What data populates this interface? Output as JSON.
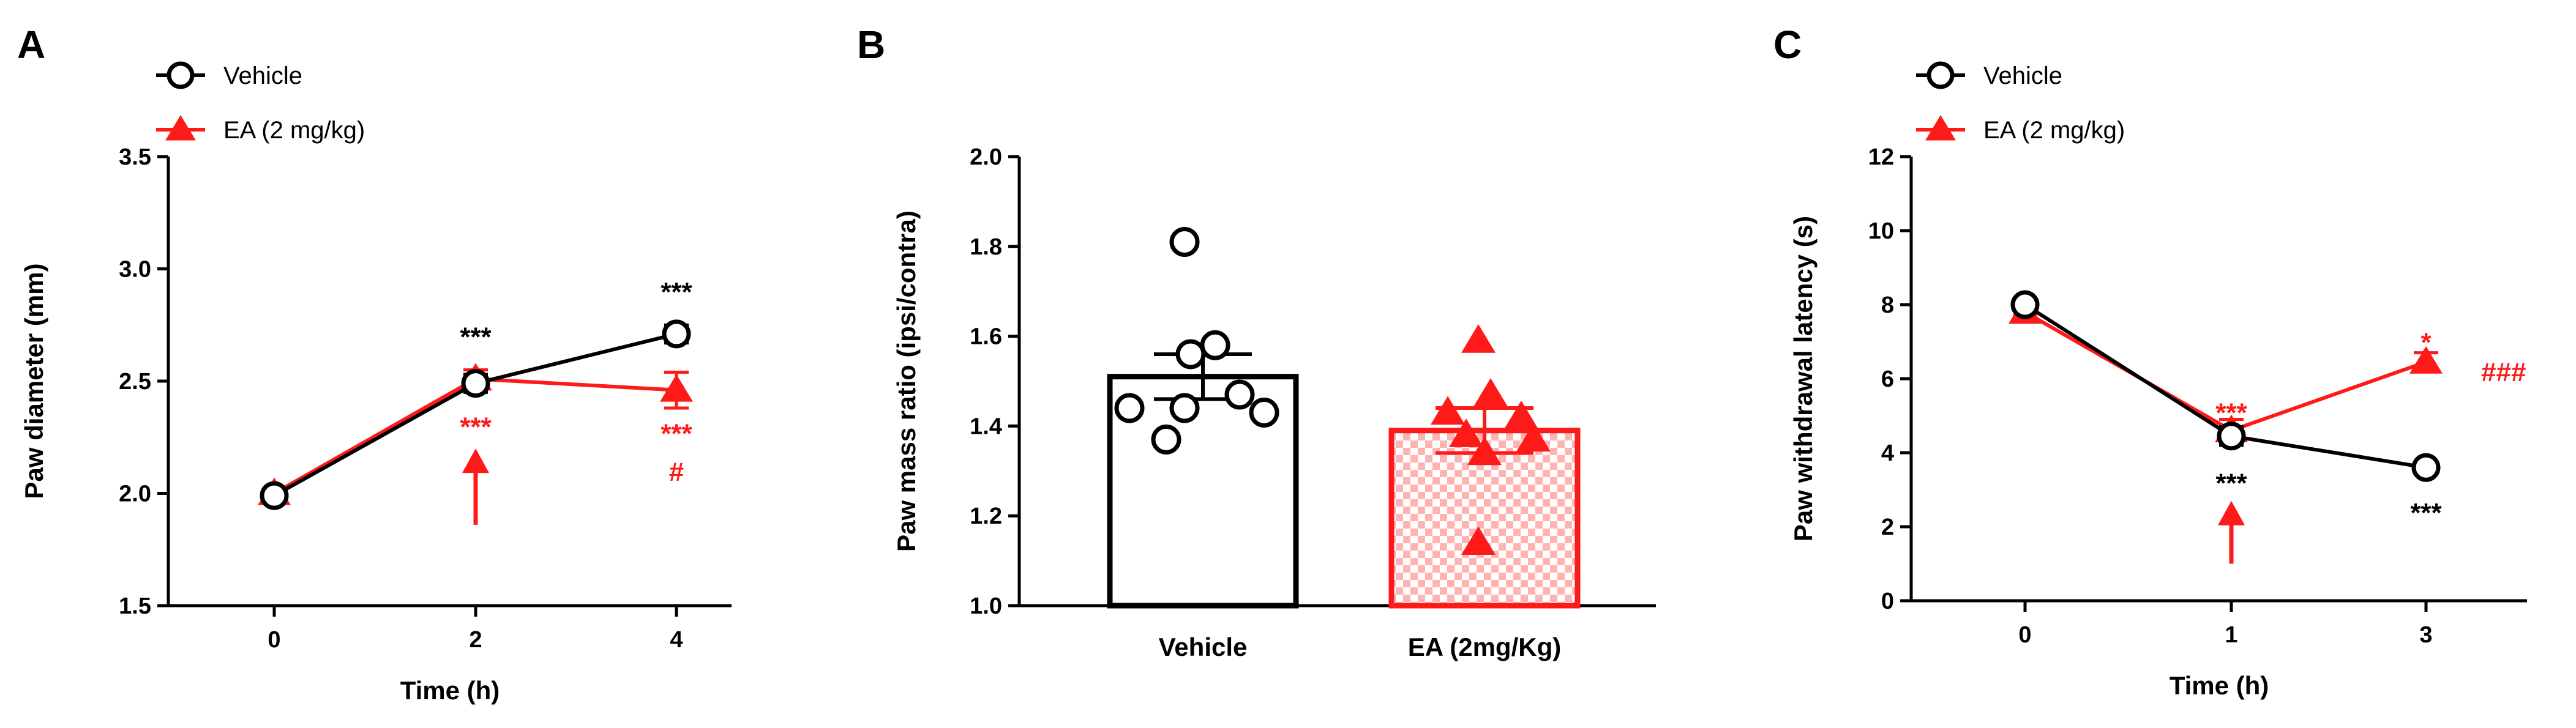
{
  "colors": {
    "vehicle": "#000000",
    "ea": "#ff1a1a"
  },
  "chart_data": [
    {
      "panel": "A",
      "type": "line",
      "xlabel": "Time (h)",
      "ylabel": "Paw diameter (mm)",
      "ylim": [
        1.5,
        3.5
      ],
      "yticks": [
        "1.5",
        "2.0",
        "2.5",
        "3.0",
        "3.5"
      ],
      "categories": [
        "0",
        "2",
        "4"
      ],
      "legend_position": "top-left",
      "series": [
        {
          "name": "Vehicle",
          "marker": "circle-open",
          "color": "#000000",
          "values": [
            1.99,
            2.49,
            2.71
          ],
          "errors": [
            0.02,
            0.04,
            0.04
          ]
        },
        {
          "name": "EA (2 mg/kg)",
          "marker": "triangle-filled",
          "color": "#ff1a1a",
          "values": [
            2.0,
            2.51,
            2.46
          ],
          "errors": [
            0.02,
            0.04,
            0.08
          ]
        }
      ],
      "annotations": [
        {
          "text": "***",
          "color": "#000000",
          "x_index": 1,
          "y": 2.7
        },
        {
          "text": "***",
          "color": "#000000",
          "x_index": 2,
          "y": 2.9
        },
        {
          "text": "***",
          "color": "#ff1a1a",
          "x_index": 1,
          "y": 2.3
        },
        {
          "text": "***",
          "color": "#ff1a1a",
          "x_index": 2,
          "y": 2.27
        },
        {
          "text": "#",
          "color": "#ff1a1a",
          "x_index": 2,
          "y": 2.1
        }
      ],
      "arrow": {
        "x_index": 1,
        "y_from": 1.86,
        "y_to": 2.2,
        "color": "#ff1a1a"
      }
    },
    {
      "panel": "B",
      "type": "bar",
      "ylabel": "Paw mass ratio (ipsi/contra)",
      "ylim": [
        1.0,
        2.0
      ],
      "yticks": [
        "1.0",
        "1.2",
        "1.4",
        "1.6",
        "1.8",
        "2.0"
      ],
      "categories": [
        "Vehicle",
        "EA (2mg/Kg)"
      ],
      "values": [
        1.51,
        1.39
      ],
      "errors": [
        0.05,
        0.05
      ],
      "points": [
        [
          1.81,
          1.58,
          1.56,
          1.47,
          1.44,
          1.43,
          1.44,
          1.37
        ],
        [
          1.59,
          1.47,
          1.43,
          1.42,
          1.38,
          1.37,
          1.34,
          1.14
        ]
      ],
      "series": [
        {
          "name": "Vehicle",
          "color": "#000000",
          "fill": "none",
          "marker": "circle-open"
        },
        {
          "name": "EA (2mg/Kg)",
          "color": "#ff1a1a",
          "fill": "checkered",
          "marker": "triangle-filled"
        }
      ]
    },
    {
      "panel": "C",
      "type": "line",
      "xlabel": "Time (h)",
      "ylabel": "Paw withdrawal latency (s)",
      "ylim": [
        0,
        12
      ],
      "yticks": [
        "0",
        "2",
        "4",
        "6",
        "8",
        "10",
        "12"
      ],
      "categories": [
        "0",
        "1",
        "3"
      ],
      "legend_position": "top-left",
      "series": [
        {
          "name": "Vehicle",
          "marker": "circle-open",
          "color": "#000000",
          "values": [
            8.0,
            4.45,
            3.6
          ],
          "errors": [
            0.1,
            0.25,
            0.15
          ]
        },
        {
          "name": "EA (2 mg/kg)",
          "marker": "triangle-filled",
          "color": "#ff1a1a",
          "values": [
            7.8,
            4.6,
            6.45
          ],
          "errors": [
            0.1,
            0.3,
            0.25
          ]
        }
      ],
      "annotations": [
        {
          "text": "***",
          "color": "#ff1a1a",
          "x_index": 1,
          "y": 5.1
        },
        {
          "text": "*",
          "color": "#ff1a1a",
          "x_index": 2,
          "y": 7.0
        },
        {
          "text": "###",
          "color": "#ff1a1a",
          "x_index": 2,
          "y": 6.2,
          "offset": "right"
        },
        {
          "text": "***",
          "color": "#000000",
          "x_index": 1,
          "y": 3.2
        },
        {
          "text": "***",
          "color": "#000000",
          "x_index": 2,
          "y": 2.4
        }
      ],
      "arrow": {
        "x_index": 1,
        "y_from": 1.0,
        "y_to": 2.7,
        "color": "#ff1a1a"
      }
    }
  ]
}
